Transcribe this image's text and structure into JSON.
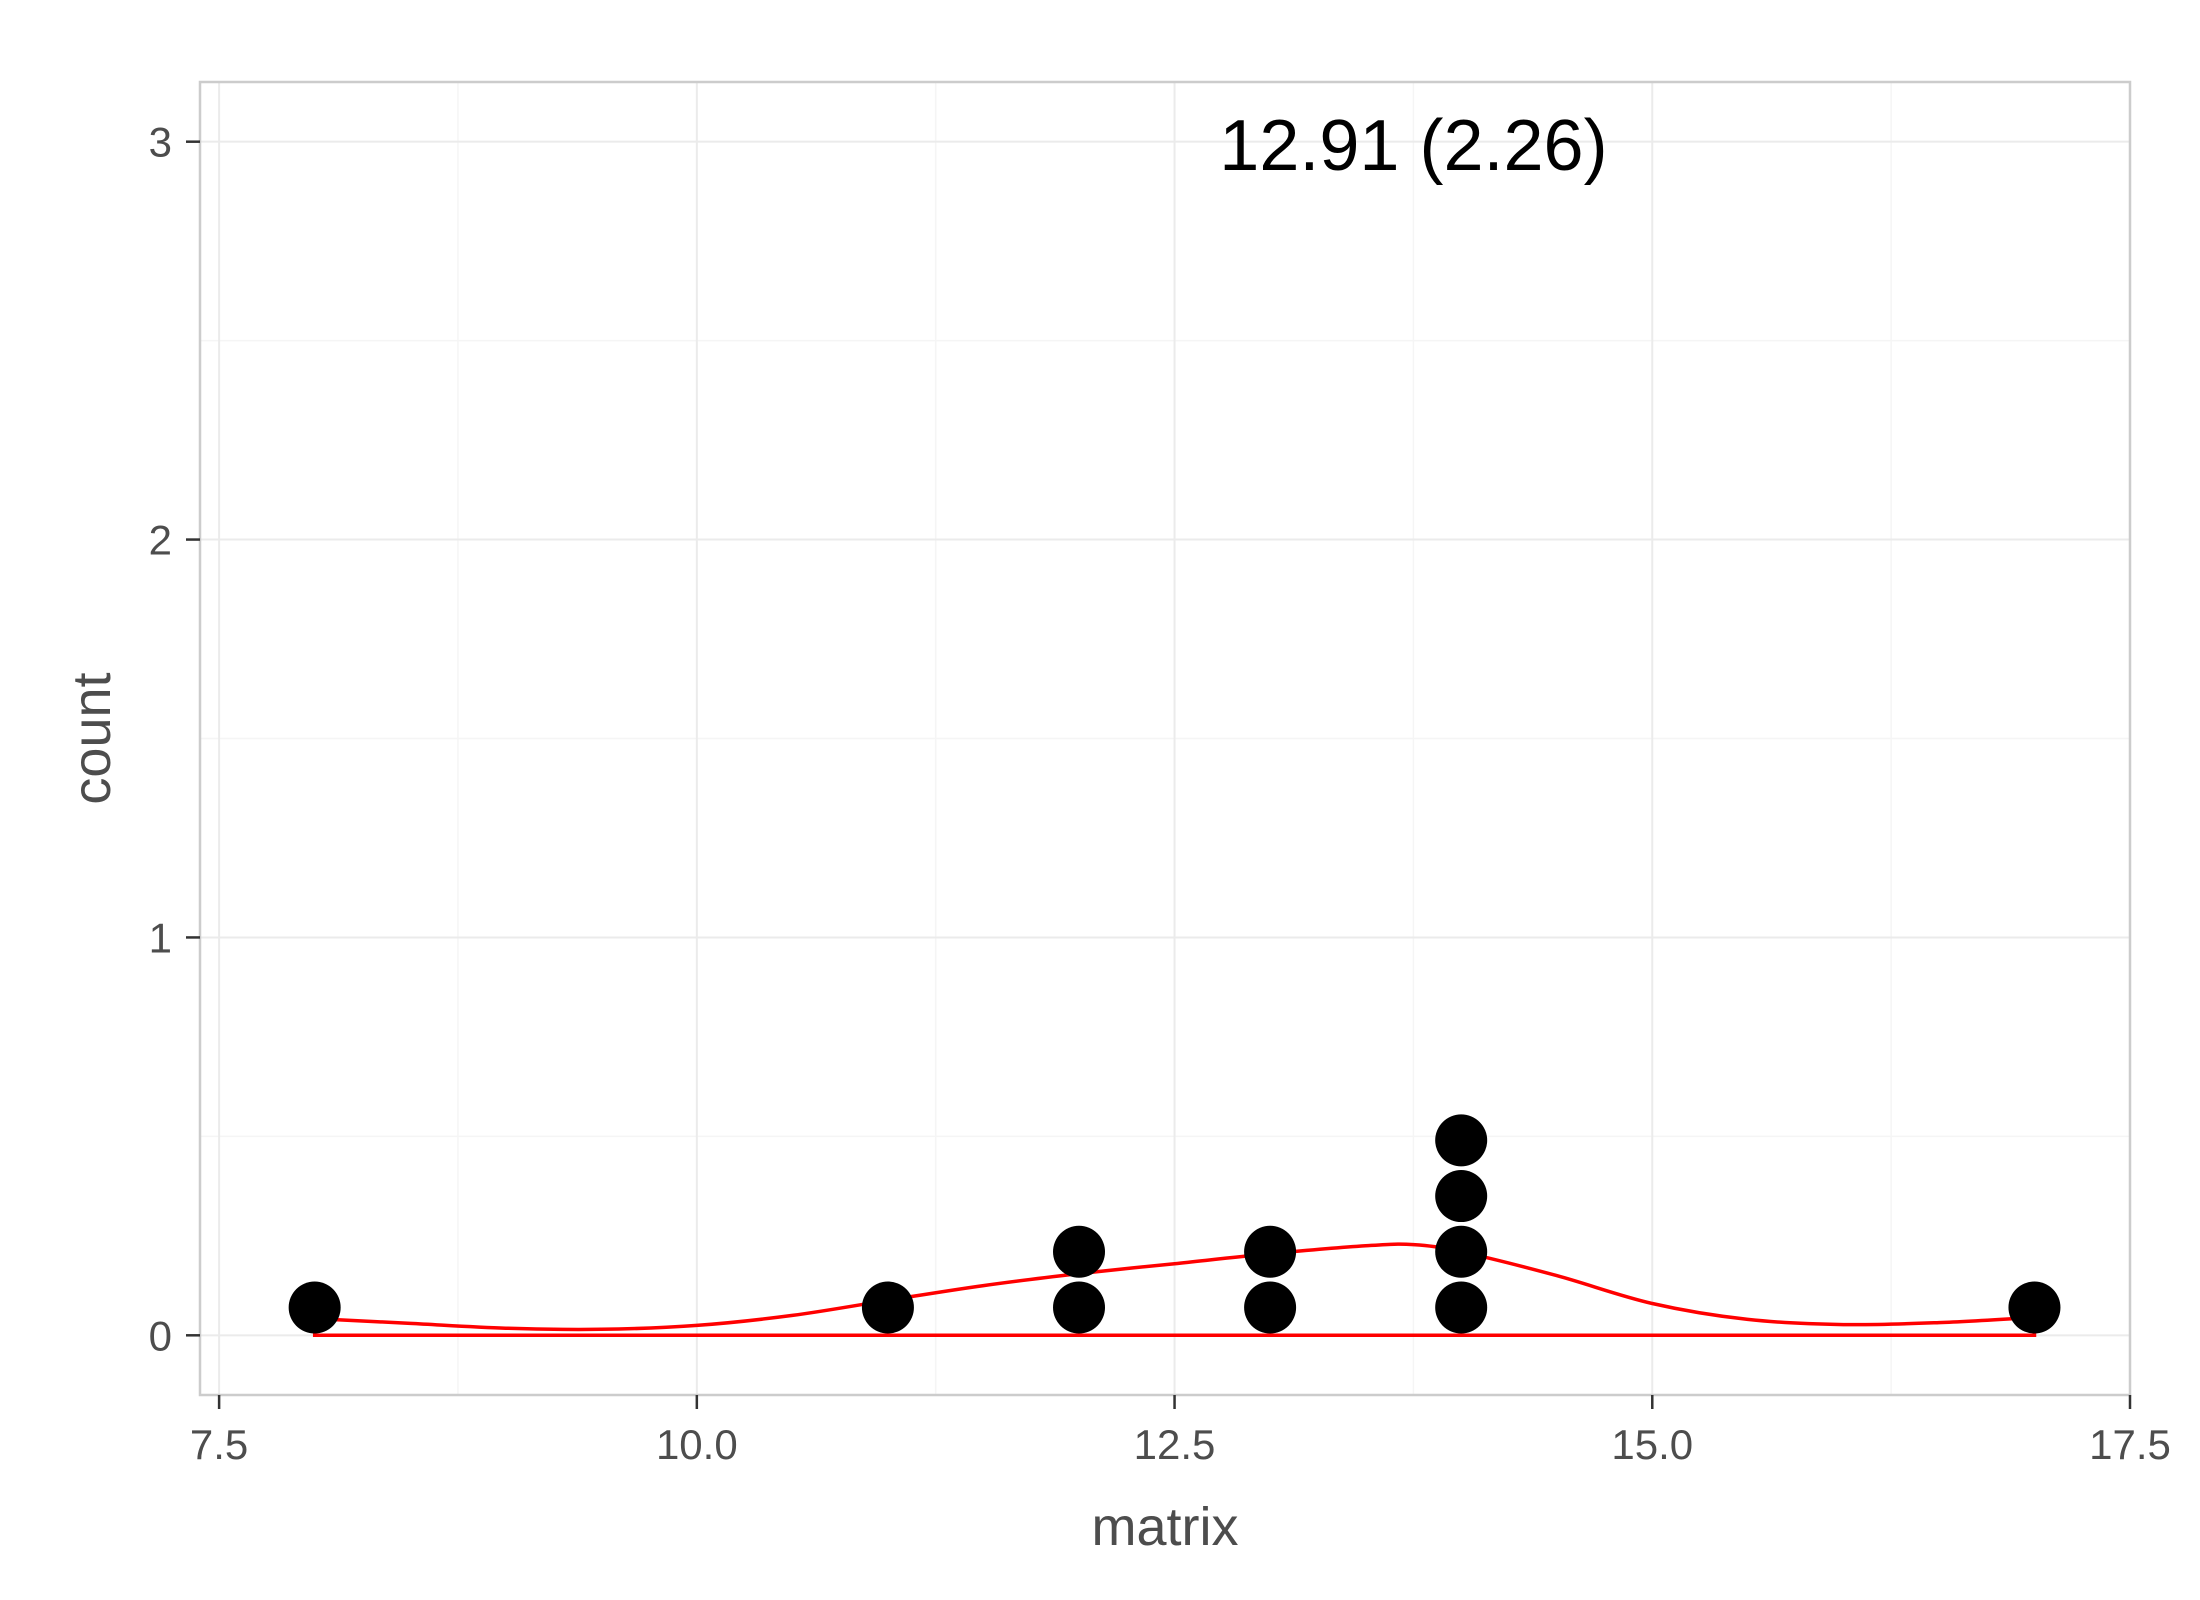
{
  "chart_data": {
    "type": "scatter",
    "subtype": "dotplot-with-density",
    "annotation": "12.91 (2.26)",
    "xlabel": "matrix",
    "ylabel": "count",
    "xlim": [
      7.4,
      17.5
    ],
    "ylim": [
      -0.15,
      3.15
    ],
    "x_ticks": [
      {
        "value": 7.5,
        "label": "7.5"
      },
      {
        "value": 10.0,
        "label": "10.0"
      },
      {
        "value": 12.5,
        "label": "12.5"
      },
      {
        "value": 15.0,
        "label": "15.0"
      },
      {
        "value": 17.5,
        "label": "17.5"
      }
    ],
    "y_ticks": [
      {
        "value": 0,
        "label": "0"
      },
      {
        "value": 1,
        "label": "1"
      },
      {
        "value": 2,
        "label": "2"
      },
      {
        "value": 3,
        "label": "3"
      }
    ],
    "grid": true,
    "points": [
      {
        "x": 8,
        "y": 0.07
      },
      {
        "x": 11,
        "y": 0.07
      },
      {
        "x": 12,
        "y": 0.07
      },
      {
        "x": 12,
        "y": 0.21
      },
      {
        "x": 13,
        "y": 0.07
      },
      {
        "x": 13,
        "y": 0.21
      },
      {
        "x": 14,
        "y": 0.07
      },
      {
        "x": 14,
        "y": 0.21
      },
      {
        "x": 14,
        "y": 0.35
      },
      {
        "x": 14,
        "y": 0.49
      },
      {
        "x": 17,
        "y": 0.07
      }
    ],
    "density": {
      "x": [
        8.0,
        8.5,
        9.0,
        9.5,
        10.0,
        10.5,
        11.0,
        11.5,
        12.0,
        12.5,
        13.0,
        13.5,
        13.75,
        14.0,
        14.5,
        15.0,
        15.5,
        16.0,
        16.5,
        17.0
      ],
      "y": [
        0.042,
        0.03,
        0.018,
        0.015,
        0.025,
        0.05,
        0.088,
        0.125,
        0.155,
        0.18,
        0.205,
        0.225,
        0.228,
        0.21,
        0.15,
        0.08,
        0.04,
        0.027,
        0.032,
        0.045
      ]
    },
    "colors": {
      "points": "#000000",
      "density": "#ff0000",
      "grid_major": "#ebebeb",
      "grid_minor": "#f5f5f5",
      "panel_border": "#cccccc",
      "axis_text": "#4d4d4d"
    }
  }
}
